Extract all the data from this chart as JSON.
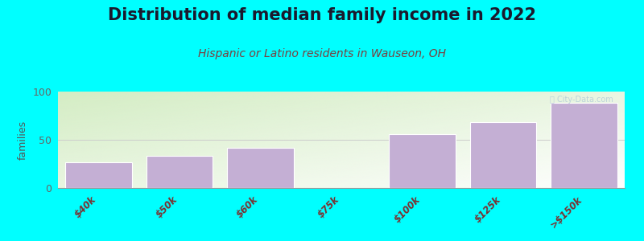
{
  "title": "Distribution of median family income in 2022",
  "subtitle": "Hispanic or Latino residents in Wauseon, OH",
  "categories": [
    "$40k",
    "$50k",
    "$60k",
    "$75k",
    "$100k",
    "$125k",
    ">$150k"
  ],
  "values": [
    27,
    33,
    42,
    0,
    56,
    68,
    88
  ],
  "bar_color": "#c4afd4",
  "background_color": "#00ffff",
  "plot_bg_top_left": "#d4edc4",
  "plot_bg_bottom_right": "#f8fff8",
  "title_fontsize": 15,
  "subtitle_fontsize": 10,
  "ylabel": "families",
  "ylim": [
    0,
    100
  ],
  "yticks": [
    0,
    50,
    100
  ],
  "grid_color": "#cccccc",
  "title_color": "#1a1a2e",
  "subtitle_color": "#7a4040",
  "ylabel_color": "#555555",
  "tick_label_color": "#7a3030",
  "watermark_text": "Ⓒ City-Data.com",
  "watermark_color": "#adc8d8"
}
